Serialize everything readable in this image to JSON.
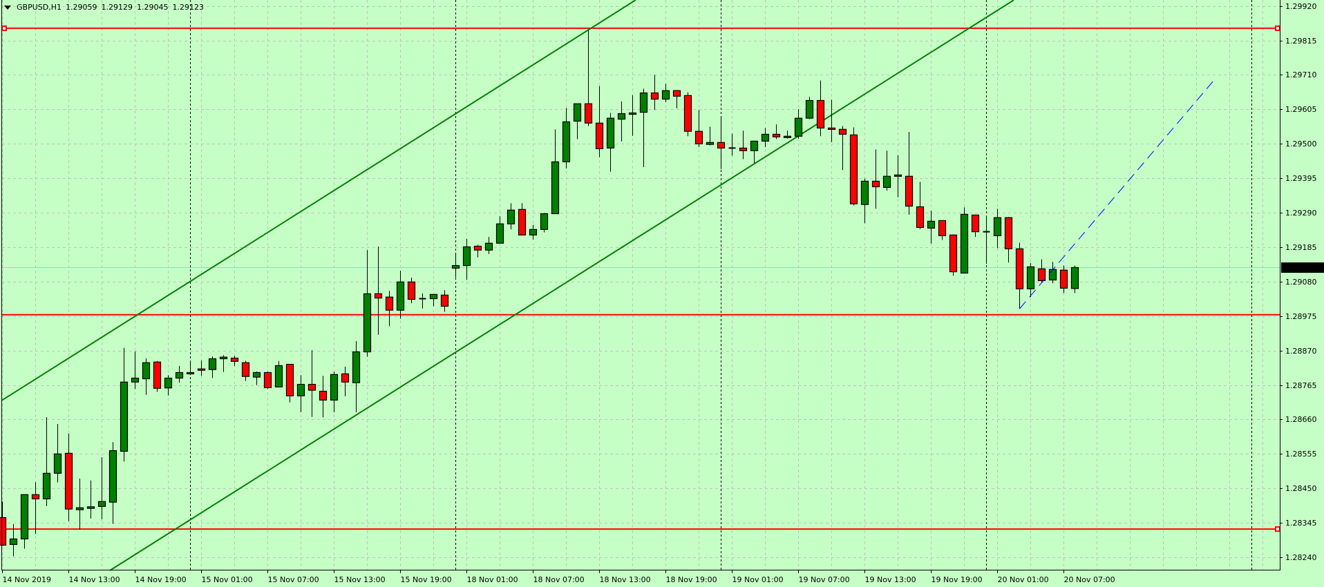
{
  "header": {
    "symbol": "GBPUSD,H1",
    "open": "1.29059",
    "high": "1.29129",
    "low": "1.29045",
    "close": "1.29123"
  },
  "colors": {
    "background": "#c6ffc6",
    "grid": "#c0c0c0",
    "bull": "#008000",
    "bear": "#ff0000",
    "outline": "#000000",
    "channel": "#008000",
    "level": "#ff0000",
    "projection": "#0000ff",
    "bid_line": "#c0c0c0",
    "price_tag_bg": "#000000",
    "price_tag_fg": "#ffffff"
  },
  "chart_data": {
    "type": "candlestick",
    "symbol": "GBPUSD",
    "timeframe": "H1",
    "grid": true,
    "candle_fields": [
      "time",
      "open",
      "high",
      "low",
      "close"
    ],
    "candles": [
      [
        "2019.11.14 07:00",
        1.28361,
        1.2841,
        1.28275,
        1.28277
      ],
      [
        "2019.11.14 08:00",
        1.28279,
        1.28341,
        1.28243,
        1.28296
      ],
      [
        "2019.11.14 09:00",
        1.28296,
        1.28432,
        1.28266,
        1.28431
      ],
      [
        "2019.11.14 10:00",
        1.28431,
        1.28469,
        1.28311,
        1.28418
      ],
      [
        "2019.11.14 11:00",
        1.28418,
        1.28667,
        1.28396,
        1.28496
      ],
      [
        "2019.11.14 12:00",
        1.28496,
        1.28646,
        1.28468,
        1.28555
      ],
      [
        "2019.11.14 13:00",
        1.28557,
        1.28617,
        1.2835,
        1.28387
      ],
      [
        "2019.11.14 14:00",
        1.28385,
        1.2848,
        1.28325,
        1.28391
      ],
      [
        "2019.11.14 15:00",
        1.28389,
        1.28474,
        1.28358,
        1.28394
      ],
      [
        "2019.11.14 16:00",
        1.28395,
        1.28545,
        1.28356,
        1.2841
      ],
      [
        "2019.11.14 17:00",
        1.28408,
        1.28591,
        1.28342,
        1.28565
      ],
      [
        "2019.11.14 18:00",
        1.28563,
        1.28878,
        1.28532,
        1.28774
      ],
      [
        "2019.11.14 19:00",
        1.28774,
        1.28867,
        1.28753,
        1.28786
      ],
      [
        "2019.11.14 20:00",
        1.28784,
        1.28846,
        1.28735,
        1.28833
      ],
      [
        "2019.11.14 21:00",
        1.28835,
        1.28838,
        1.28744,
        1.28755
      ],
      [
        "2019.11.14 22:00",
        1.28756,
        1.28795,
        1.28733,
        1.28786
      ],
      [
        "2019.11.14 23:00",
        1.28786,
        1.28823,
        1.28772,
        1.28803
      ],
      [
        "2019.11.15 00:00",
        1.28799,
        1.28835,
        1.28795,
        1.28803
      ],
      [
        "2019.11.15 01:00",
        1.28814,
        1.2884,
        1.28793,
        1.2881
      ],
      [
        "2019.11.15 02:00",
        1.28812,
        1.28852,
        1.28786,
        1.28845
      ],
      [
        "2019.11.15 03:00",
        1.28845,
        1.28856,
        1.28805,
        1.2885
      ],
      [
        "2019.11.15 04:00",
        1.28847,
        1.28854,
        1.28823,
        1.28837
      ],
      [
        "2019.11.15 05:00",
        1.28833,
        1.28839,
        1.28777,
        1.28791
      ],
      [
        "2019.11.15 06:00",
        1.28789,
        1.28806,
        1.28765,
        1.28803
      ],
      [
        "2019.11.15 07:00",
        1.28803,
        1.28806,
        1.28753,
        1.28757
      ],
      [
        "2019.11.15 08:00",
        1.28759,
        1.28838,
        1.28759,
        1.28824
      ],
      [
        "2019.11.15 09:00",
        1.28828,
        1.28828,
        1.28712,
        1.28732
      ],
      [
        "2019.11.15 10:00",
        1.28732,
        1.28795,
        1.28682,
        1.28767
      ],
      [
        "2019.11.15 11:00",
        1.28767,
        1.28871,
        1.28668,
        1.28749
      ],
      [
        "2019.11.15 12:00",
        1.28746,
        1.28793,
        1.28666,
        1.28719
      ],
      [
        "2019.11.15 13:00",
        1.28719,
        1.28806,
        1.28682,
        1.28797
      ],
      [
        "2019.11.15 14:00",
        1.28799,
        1.28821,
        1.28731,
        1.28774
      ],
      [
        "2019.11.15 15:00",
        1.28772,
        1.28899,
        1.28682,
        1.28866
      ],
      [
        "2019.11.15 16:00",
        1.28866,
        1.29176,
        1.28851,
        1.29043
      ],
      [
        "2019.11.15 17:00",
        1.29043,
        1.29187,
        1.28918,
        1.2903
      ],
      [
        "2019.11.15 18:00",
        1.29033,
        1.29052,
        1.28944,
        1.28993
      ],
      [
        "2019.11.15 19:00",
        1.28993,
        1.29113,
        1.28967,
        1.29079
      ],
      [
        "2019.11.15 20:00",
        1.29079,
        1.29092,
        1.29014,
        1.29026
      ],
      [
        "2019.11.15 21:00",
        1.29028,
        1.29044,
        1.28998,
        1.29028
      ],
      [
        "2019.11.15 22:00",
        1.29028,
        1.29041,
        1.29005,
        1.29041
      ],
      [
        "2019.11.15 23:00",
        1.29039,
        1.29054,
        1.28988,
        1.29005
      ],
      [
        "2019.11.18 00:00",
        1.29121,
        1.29166,
        1.29093,
        1.29129
      ],
      [
        "2019.11.18 01:00",
        1.29129,
        1.2921,
        1.29085,
        1.29186
      ],
      [
        "2019.11.18 02:00",
        1.29188,
        1.29192,
        1.29154,
        1.29176
      ],
      [
        "2019.11.18 03:00",
        1.29176,
        1.29216,
        1.29164,
        1.29197
      ],
      [
        "2019.11.18 04:00",
        1.29197,
        1.29279,
        1.29197,
        1.29256
      ],
      [
        "2019.11.18 05:00",
        1.29256,
        1.29319,
        1.29239,
        1.29298
      ],
      [
        "2019.11.18 06:00",
        1.293,
        1.29319,
        1.29222,
        1.29222
      ],
      [
        "2019.11.18 07:00",
        1.29222,
        1.29253,
        1.29208,
        1.29239
      ],
      [
        "2019.11.18 08:00",
        1.29239,
        1.29289,
        1.2923,
        1.29287
      ],
      [
        "2019.11.18 09:00",
        1.29287,
        1.29544,
        1.29287,
        1.29445
      ],
      [
        "2019.11.18 10:00",
        1.29445,
        1.29609,
        1.29425,
        1.29567
      ],
      [
        "2019.11.18 11:00",
        1.29569,
        1.29622,
        1.29514,
        1.29622
      ],
      [
        "2019.11.18 12:00",
        1.29622,
        1.29845,
        1.29554,
        1.29563
      ],
      [
        "2019.11.18 13:00",
        1.29563,
        1.29676,
        1.29459,
        1.29485
      ],
      [
        "2019.11.18 14:00",
        1.29487,
        1.29594,
        1.29415,
        1.29578
      ],
      [
        "2019.11.18 15:00",
        1.29575,
        1.29629,
        1.29507,
        1.29592
      ],
      [
        "2019.11.18 16:00",
        1.2959,
        1.29648,
        1.29524,
        1.29594
      ],
      [
        "2019.11.18 17:00",
        1.29596,
        1.29668,
        1.29429,
        1.29655
      ],
      [
        "2019.11.18 18:00",
        1.29655,
        1.2971,
        1.29603,
        1.29636
      ],
      [
        "2019.11.18 19:00",
        1.29636,
        1.29683,
        1.29627,
        1.29662
      ],
      [
        "2019.11.18 20:00",
        1.29662,
        1.29664,
        1.29608,
        1.29645
      ],
      [
        "2019.11.18 21:00",
        1.29647,
        1.29657,
        1.29523,
        1.29538
      ],
      [
        "2019.11.18 22:00",
        1.29538,
        1.29603,
        1.2949,
        1.295
      ],
      [
        "2019.11.18 23:00",
        1.29498,
        1.29552,
        1.29495,
        1.29504
      ],
      [
        "2019.11.19 00:00",
        1.29504,
        1.2958,
        1.29423,
        1.29487
      ],
      [
        "2019.11.19 01:00",
        1.29487,
        1.29531,
        1.29464,
        1.29487
      ],
      [
        "2019.11.19 02:00",
        1.29487,
        1.2954,
        1.29453,
        1.29479
      ],
      [
        "2019.11.19 03:00",
        1.29479,
        1.2951,
        1.29441,
        1.29508
      ],
      [
        "2019.11.19 04:00",
        1.29508,
        1.29548,
        1.2949,
        1.29529
      ],
      [
        "2019.11.19 05:00",
        1.29529,
        1.29559,
        1.29514,
        1.29521
      ],
      [
        "2019.11.19 06:00",
        1.29521,
        1.2954,
        1.29516,
        1.29523
      ],
      [
        "2019.11.19 07:00",
        1.29523,
        1.29605,
        1.29516,
        1.29578
      ],
      [
        "2019.11.19 08:00",
        1.29578,
        1.29643,
        1.29575,
        1.29632
      ],
      [
        "2019.11.19 09:00",
        1.29632,
        1.29693,
        1.29523,
        1.29548
      ],
      [
        "2019.11.19 10:00",
        1.29548,
        1.29634,
        1.29505,
        1.29544
      ],
      [
        "2019.11.19 11:00",
        1.29544,
        1.29554,
        1.2942,
        1.29529
      ],
      [
        "2019.11.19 12:00",
        1.29527,
        1.2955,
        1.29312,
        1.29317
      ],
      [
        "2019.11.19 13:00",
        1.29315,
        1.29394,
        1.29258,
        1.29386
      ],
      [
        "2019.11.19 14:00",
        1.29386,
        1.29483,
        1.29302,
        1.29369
      ],
      [
        "2019.11.19 15:00",
        1.29367,
        1.29479,
        1.29357,
        1.29401
      ],
      [
        "2019.11.19 16:00",
        1.29401,
        1.29465,
        1.29337,
        1.29405
      ],
      [
        "2019.11.19 17:00",
        1.29401,
        1.29536,
        1.29284,
        1.2931
      ],
      [
        "2019.11.19 18:00",
        1.29308,
        1.29384,
        1.2924,
        1.29245
      ],
      [
        "2019.11.19 19:00",
        1.29243,
        1.29296,
        1.29196,
        1.29264
      ],
      [
        "2019.11.19 20:00",
        1.29266,
        1.29266,
        1.29207,
        1.2922
      ],
      [
        "2019.11.19 21:00",
        1.29222,
        1.29224,
        1.29098,
        1.2911
      ],
      [
        "2019.11.19 22:00",
        1.29106,
        1.29306,
        1.29106,
        1.29285
      ],
      [
        "2019.11.19 23:00",
        1.29283,
        1.29283,
        1.29216,
        1.29232
      ],
      [
        "2019.11.20 00:00",
        1.29232,
        1.29279,
        1.29134,
        1.29232
      ],
      [
        "2019.11.20 01:00",
        1.2922,
        1.29302,
        1.29182,
        1.29275
      ],
      [
        "2019.11.20 02:00",
        1.29275,
        1.29277,
        1.29138,
        1.2918
      ],
      [
        "2019.11.20 03:00",
        1.2918,
        1.29199,
        1.28997,
        1.29058
      ],
      [
        "2019.11.20 04:00",
        1.29058,
        1.29136,
        1.29033,
        1.29125
      ],
      [
        "2019.11.20 05:00",
        1.29119,
        1.29148,
        1.29077,
        1.29083
      ],
      [
        "2019.11.20 06:00",
        1.29085,
        1.2914,
        1.29075,
        1.29117
      ],
      [
        "2019.11.20 07:00",
        1.29115,
        1.29129,
        1.29045,
        1.2906
      ],
      [
        "2019.11.20 08:00",
        1.29059,
        1.29129,
        1.29045,
        1.29123
      ]
    ],
    "y_axis": {
      "position": "right",
      "ylim": [
        1.2824,
        1.2992
      ],
      "tick_labels": [
        "1.29920",
        "1.29815",
        "1.29710",
        "1.29605",
        "1.29500",
        "1.29395",
        "1.29290",
        "1.29185",
        "1.29080",
        "1.28975",
        "1.28870",
        "1.28765",
        "1.28660",
        "1.28555",
        "1.28450",
        "1.28345",
        "1.28240"
      ]
    },
    "x_axis": {
      "tick_labels": [
        "14 Nov 2019",
        "14 Nov 13:00",
        "14 Nov 19:00",
        "15 Nov 01:00",
        "15 Nov 07:00",
        "15 Nov 13:00",
        "15 Nov 19:00",
        "18 Nov 01:00",
        "18 Nov 07:00",
        "18 Nov 13:00",
        "18 Nov 19:00",
        "19 Nov 01:00",
        "19 Nov 07:00",
        "19 Nov 13:00",
        "19 Nov 19:00",
        "20 Nov 01:00",
        "20 Nov 07:00"
      ]
    },
    "current_price": "1.29123",
    "horizontal_levels": [
      {
        "price": 1.29852,
        "selected": true
      },
      {
        "price": 1.28979,
        "selected": false
      },
      {
        "price": 1.28326,
        "selected": false
      }
    ],
    "channel_lines": [
      {
        "p1": {
          "time": "2019.11.14 07:00",
          "price": 1.28719
        },
        "p2": {
          "time": "2019.11.18 09:00",
          "price": 1.29783
        }
      },
      {
        "p1": {
          "time": "2019.11.14 07:00",
          "price": 1.27993
        },
        "p2": {
          "time": "2019.11.18 09:00",
          "price": 1.29056
        }
      }
    ],
    "projection_line": {
      "style": "dashed",
      "p1": {
        "time": "2019.11.20 03:00",
        "price": 1.28997
      },
      "p2": {
        "time": "2019.11.20 20:30",
        "price": 1.2969
      }
    },
    "period_separators": "daily"
  }
}
